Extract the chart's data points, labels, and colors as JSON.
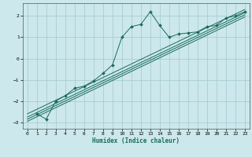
{
  "title": "",
  "xlabel": "Humidex (Indice chaleur)",
  "bg_color": "#cce8ec",
  "grid_color": "#a8cdd4",
  "line_color": "#1a6b5a",
  "xlim": [
    -0.5,
    23.5
  ],
  "ylim": [
    -3.3,
    2.6
  ],
  "xticks": [
    0,
    1,
    2,
    3,
    4,
    5,
    6,
    7,
    8,
    9,
    10,
    11,
    12,
    13,
    14,
    15,
    16,
    17,
    18,
    19,
    20,
    21,
    22,
    23
  ],
  "yticks": [
    -3,
    -2,
    -1,
    0,
    1,
    2
  ],
  "data_x": [
    1,
    2,
    3,
    4,
    5,
    6,
    7,
    8,
    9,
    10,
    11,
    12,
    13,
    14,
    15,
    16,
    17,
    18,
    19,
    20,
    21,
    22,
    23
  ],
  "data_y": [
    -2.6,
    -2.85,
    -2.0,
    -1.75,
    -1.4,
    -1.3,
    -1.05,
    -0.7,
    -0.3,
    1.0,
    1.5,
    1.6,
    2.2,
    1.55,
    1.0,
    1.15,
    1.2,
    1.25,
    1.5,
    1.55,
    1.9,
    2.0,
    2.2
  ],
  "reg_lines": [
    {
      "x": [
        0,
        23
      ],
      "y": [
        -2.6,
        2.3
      ]
    },
    {
      "x": [
        0,
        23
      ],
      "y": [
        -2.75,
        2.15
      ]
    },
    {
      "x": [
        0,
        23
      ],
      "y": [
        -2.85,
        2.05
      ]
    },
    {
      "x": [
        0,
        23
      ],
      "y": [
        -2.95,
        1.95
      ]
    }
  ]
}
